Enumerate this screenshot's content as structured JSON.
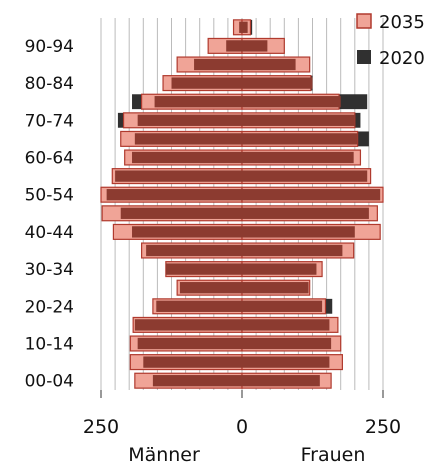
{
  "chart_data": {
    "type": "bar",
    "orientation": "horizontal-pyramid",
    "xlim": [
      -250,
      250
    ],
    "x_ticks": [
      "250",
      "0",
      "250"
    ],
    "xlabel_left": "Männer",
    "xlabel_right": "Frauen",
    "categories": [
      "00-04",
      "05-09",
      "10-14",
      "15-19",
      "20-24",
      "25-29",
      "30-34",
      "35-39",
      "40-44",
      "45-49",
      "50-54",
      "55-59",
      "60-64",
      "65-69",
      "70-74",
      "75-79",
      "80-84",
      "85-89",
      "90-94",
      "95+"
    ],
    "category_labels_shown": [
      "00-04",
      "10-14",
      "20-24",
      "30-34",
      "40-44",
      "50-54",
      "60-64",
      "70-74",
      "80-84",
      "90-94"
    ],
    "legend": {
      "position": "top-right",
      "entries": [
        "2035",
        "2020"
      ]
    },
    "colors": {
      "s2035_fill": "#f0a497",
      "s2035_edge": "#b03a2e",
      "s2020_fill": "#8c3b30",
      "s2020_edge": "#b84a3c",
      "total_2020": "#303030",
      "grid": "#bbbbbb"
    },
    "series": [
      {
        "name": "2020",
        "men": [
          158,
          175,
          185,
          190,
          152,
          110,
          135,
          170,
          195,
          215,
          240,
          225,
          195,
          190,
          185,
          155,
          125,
          85,
          28,
          5
        ],
        "women": [
          138,
          155,
          158,
          155,
          142,
          118,
          132,
          178,
          200,
          225,
          245,
          222,
          198,
          205,
          200,
          175,
          125,
          95,
          45,
          10
        ]
      },
      {
        "name": "2035",
        "men": [
          190,
          198,
          198,
          193,
          158,
          115,
          135,
          178,
          228,
          248,
          250,
          230,
          208,
          215,
          210,
          178,
          140,
          115,
          60,
          15
        ],
        "women": [
          158,
          178,
          175,
          170,
          148,
          120,
          142,
          198,
          245,
          240,
          250,
          228,
          210,
          205,
          200,
          172,
          122,
          120,
          75,
          15
        ]
      },
      {
        "name": "2020",
        "men": [
          158,
          175,
          185,
          190,
          152,
          110,
          135,
          170,
          195,
          215,
          240,
          225,
          195,
          190,
          220,
          195,
          135,
          110,
          55,
          15
        ],
        "women": [
          138,
          155,
          158,
          155,
          160,
          118,
          132,
          178,
          200,
          225,
          245,
          222,
          198,
          225,
          210,
          222,
          125,
          95,
          45,
          18
        ]
      }
    ]
  }
}
